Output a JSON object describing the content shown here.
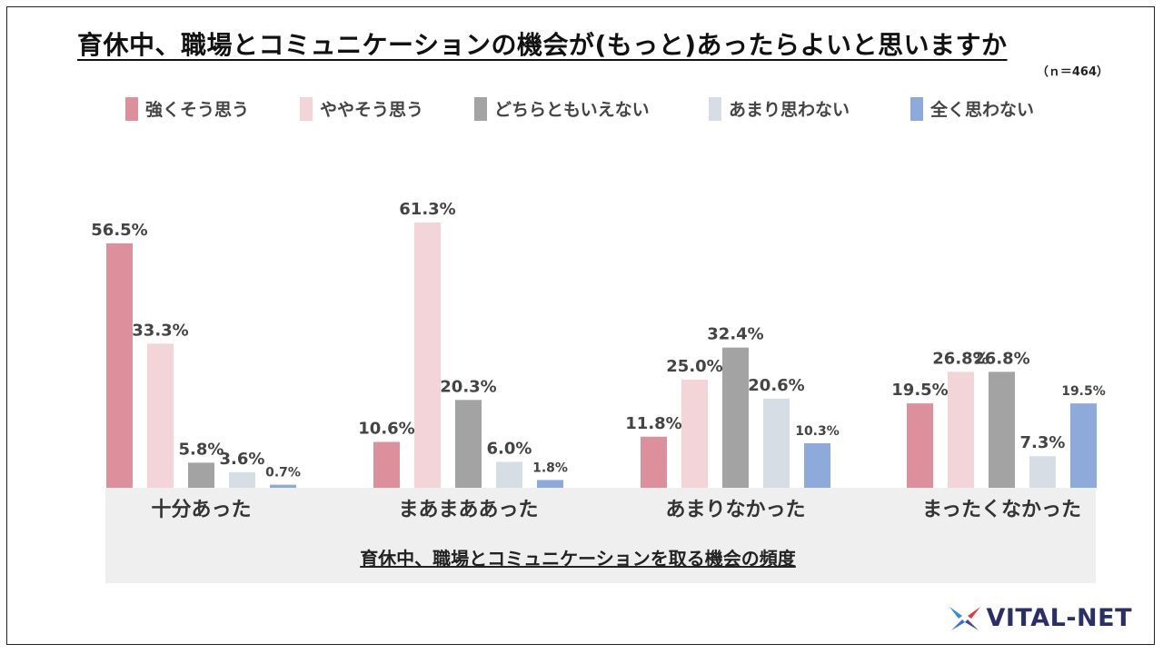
{
  "title": "育休中、職場とコミュニケーションの機会が(もっと)あったらよいと思いますか",
  "sample_size": "（ｎ＝464）",
  "logo_text": "VITAL-NET",
  "chart_data": {
    "type": "bar",
    "title": "育休中、職場とコミュニケーションの機会が(もっと)あったらよいと思いますか",
    "xlabel": "育休中、職場とコミュニケーションを取る機会の頻度",
    "ylabel": "",
    "ylim": [
      0,
      70
    ],
    "grid": false,
    "legend_position": "top",
    "categories": [
      "十分あった",
      "まあまああった",
      "あまりなかった",
      "まったくなかった"
    ],
    "series": [
      {
        "name": "強くそう思う",
        "color": "#dc909c",
        "values": [
          56.5,
          10.6,
          11.8,
          19.5
        ],
        "labels": [
          "56.5%",
          "10.6%",
          "11.8%",
          "19.5%"
        ]
      },
      {
        "name": "ややそう思う",
        "color": "#f2d4d9",
        "values": [
          33.3,
          61.3,
          25.0,
          26.8
        ],
        "labels": [
          "33.3%",
          "61.3%",
          "25.0%",
          "26.8%"
        ]
      },
      {
        "name": "どちらともいえない",
        "color": "#a3a3a3",
        "values": [
          5.8,
          20.3,
          32.4,
          26.8
        ],
        "labels": [
          "5.8%",
          "20.3%",
          "32.4%",
          "26.8%"
        ]
      },
      {
        "name": "あまり思わない",
        "color": "#d7dde5",
        "values": [
          3.6,
          6.0,
          20.6,
          7.3
        ],
        "labels": [
          "3.6%",
          "6.0%",
          "20.6%",
          "7.3%"
        ]
      },
      {
        "name": "全く思わない",
        "color": "#8eaadb",
        "values": [
          0.7,
          1.8,
          10.3,
          19.5
        ],
        "labels": [
          "0.7%",
          "1.8%",
          "10.3%",
          "19.5%"
        ]
      }
    ]
  }
}
